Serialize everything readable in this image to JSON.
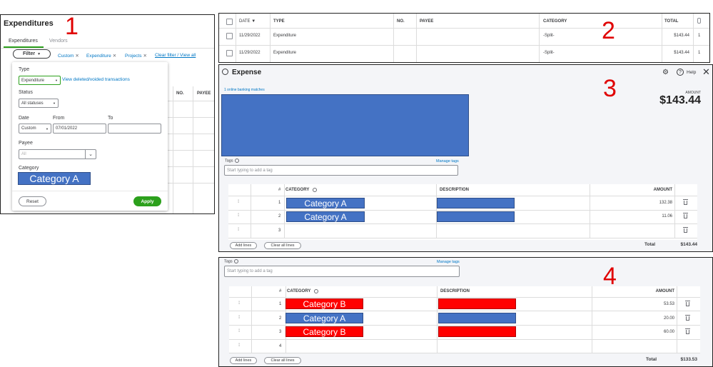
{
  "annotations": [
    "1",
    "2",
    "3",
    "4"
  ],
  "panel1": {
    "title": "Expenditures",
    "tabs": [
      "Expenditures",
      "Vendors"
    ],
    "filter_button": "Filter",
    "chips": [
      "Custom",
      "Expenditure",
      "Projects"
    ],
    "clear_link": "Clear filter / View all",
    "bg_headers": [
      "NO.",
      "PAYEE"
    ],
    "type_label": "Type",
    "type_value": "Expenditure",
    "view_deleted_link": "View deleted/voided transactions",
    "status_label": "Status",
    "status_value": "All statuses",
    "date_label": "Date",
    "from_label": "From",
    "to_label": "To",
    "date_value": "Custom",
    "from_value": "07/01/2022",
    "to_value": "",
    "payee_label": "Payee",
    "payee_placeholder": "All",
    "category_label": "Category",
    "category_value": "Category A",
    "reset_button": "Reset",
    "apply_button": "Apply"
  },
  "panel2": {
    "headers": [
      "DATE ▼",
      "TYPE",
      "NO.",
      "PAYEE",
      "CATEGORY",
      "TOTAL"
    ],
    "rows": [
      {
        "date": "11/29/2022",
        "type": "Expenditure",
        "no": "",
        "payee": "",
        "category": "-Split-",
        "total": "$143.44",
        "count": "1"
      },
      {
        "date": "11/29/2022",
        "type": "Expenditure",
        "no": "",
        "payee": "",
        "category": "-Split-",
        "total": "$143.44",
        "count": "1"
      }
    ]
  },
  "panel3": {
    "title": "Expense",
    "help": "Help",
    "banking_link": "1 online banking matches",
    "amount_label": "AMOUNT",
    "amount_value": "$143.44",
    "tags_label": "Tags",
    "manage_tags": "Manage tags",
    "tags_placeholder": "Start typing to add a tag",
    "table_headers": [
      "#",
      "CATEGORY",
      "DESCRIPTION",
      "AMOUNT"
    ],
    "lines": [
      {
        "num": "1",
        "category": "Category A",
        "amount": "132.38"
      },
      {
        "num": "2",
        "category": "Category A",
        "amount": "11.06"
      },
      {
        "num": "3",
        "category": "",
        "amount": ""
      }
    ],
    "add_lines": "Add lines",
    "clear_lines": "Clear all lines",
    "total_label": "Total",
    "total_value": "$143.44"
  },
  "panel4": {
    "tags_label": "Tags",
    "manage_tags": "Manage tags",
    "tags_placeholder": "Start typing to add a tag",
    "table_headers": [
      "#",
      "CATEGORY",
      "DESCRIPTION",
      "AMOUNT"
    ],
    "lines": [
      {
        "num": "1",
        "category": "Category B",
        "amount": "53.53"
      },
      {
        "num": "2",
        "category": "Category A",
        "amount": "20.00"
      },
      {
        "num": "3",
        "category": "Category B",
        "amount": "60.00"
      },
      {
        "num": "4",
        "category": "",
        "amount": ""
      }
    ],
    "add_lines": "Add lines",
    "clear_lines": "Clear all lines",
    "total_label": "Total",
    "total_value": "$133.53"
  },
  "colors": {
    "category_a": "#4472c4",
    "category_b": "#ff0000",
    "accent_green": "#2ca01c",
    "link_blue": "#0077c5",
    "annotation_red": "#e00000"
  }
}
